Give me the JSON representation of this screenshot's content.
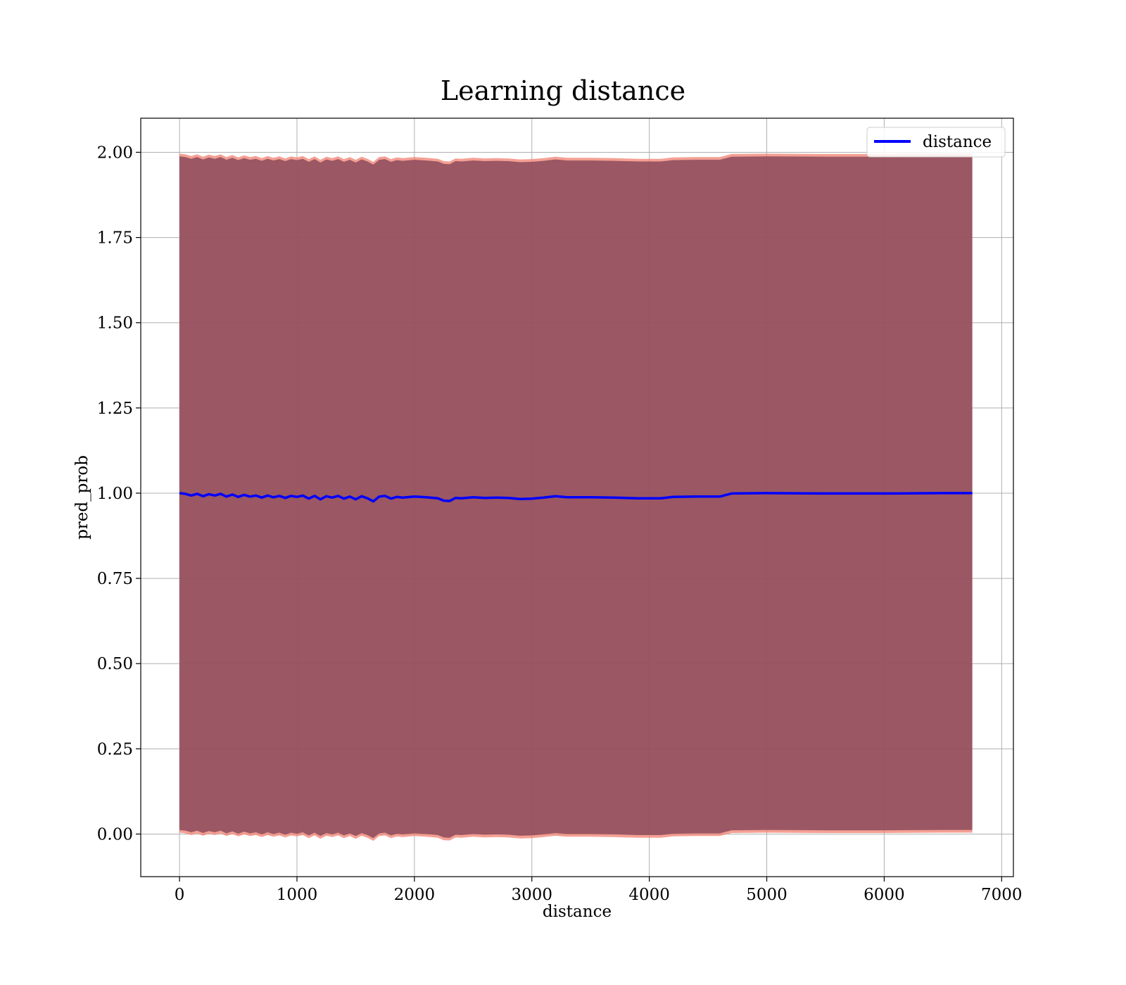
{
  "chart_data": {
    "type": "line",
    "title": "Learning distance",
    "xlabel": "distance",
    "ylabel": "pred_prob",
    "xlim": [
      -330,
      7100
    ],
    "ylim": [
      -0.125,
      2.1
    ],
    "xticks": [
      0,
      1000,
      2000,
      3000,
      4000,
      5000,
      6000,
      7000
    ],
    "yticks": [
      0.0,
      0.25,
      0.5,
      0.75,
      1.0,
      1.25,
      1.5,
      1.75,
      2.0
    ],
    "ytick_labels": [
      "0.00",
      "0.25",
      "0.50",
      "0.75",
      "1.00",
      "1.25",
      "1.50",
      "1.75",
      "2.00"
    ],
    "grid": true,
    "legend": {
      "position": "top-right",
      "entries": [
        "distance"
      ]
    },
    "series": [
      {
        "name": "distance",
        "color": "#0000ff",
        "x": [
          0,
          50,
          100,
          150,
          200,
          250,
          300,
          350,
          400,
          450,
          500,
          550,
          600,
          650,
          700,
          750,
          800,
          850,
          900,
          950,
          1000,
          1050,
          1100,
          1150,
          1200,
          1250,
          1300,
          1350,
          1400,
          1450,
          1500,
          1550,
          1600,
          1650,
          1700,
          1750,
          1800,
          1850,
          1900,
          2000,
          2100,
          2200,
          2250,
          2300,
          2350,
          2400,
          2500,
          2600,
          2700,
          2800,
          2900,
          3000,
          3100,
          3200,
          3300,
          3500,
          3700,
          3900,
          4100,
          4200,
          4400,
          4600,
          4700,
          5000,
          5500,
          6000,
          6500,
          6750
        ],
        "values": [
          1.0,
          0.998,
          0.993,
          0.998,
          0.991,
          0.997,
          0.993,
          0.998,
          0.99,
          0.996,
          0.989,
          0.995,
          0.99,
          0.993,
          0.987,
          0.993,
          0.988,
          0.992,
          0.986,
          0.992,
          0.989,
          0.993,
          0.984,
          0.992,
          0.982,
          0.991,
          0.987,
          0.992,
          0.984,
          0.99,
          0.982,
          0.991,
          0.985,
          0.976,
          0.99,
          0.992,
          0.984,
          0.989,
          0.987,
          0.99,
          0.988,
          0.985,
          0.978,
          0.977,
          0.986,
          0.985,
          0.988,
          0.986,
          0.987,
          0.986,
          0.983,
          0.984,
          0.987,
          0.991,
          0.988,
          0.988,
          0.987,
          0.985,
          0.985,
          0.989,
          0.99,
          0.99,
          0.999,
          1.0,
          0.999,
          0.999,
          1.0,
          1.0
        ]
      }
    ],
    "band": {
      "fill_color": "#8b4a5a",
      "edge_color": "#f08070",
      "offset": 0.988
    }
  }
}
